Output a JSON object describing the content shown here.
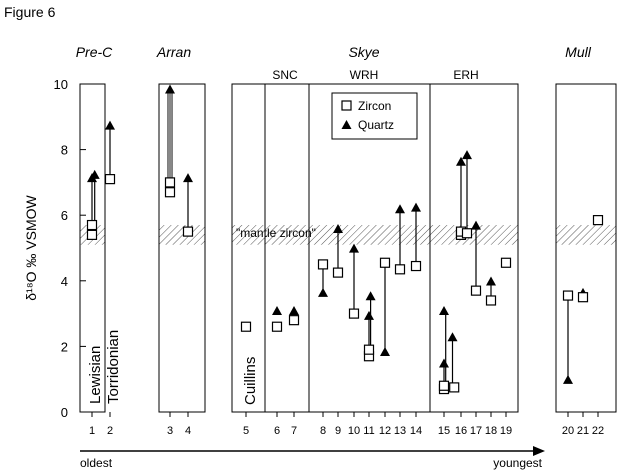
{
  "figure_label": "Figure 6",
  "chart_data": {
    "type": "scatter",
    "ylabel": "δ¹⁸O ‰ VSMOW",
    "ylim": [
      0,
      10
    ],
    "yticks": [
      0,
      2,
      4,
      6,
      8,
      10
    ],
    "arrow_left_label": "oldest",
    "arrow_right_label": "youngest",
    "mantle_zircon_band": [
      5.1,
      5.7
    ],
    "mantle_label": "\"mantle zircon\"",
    "legend": {
      "zircon": "Zircon",
      "quartz": "Quartz",
      "placement": "top-center of Skye panel"
    },
    "panels": [
      {
        "id": "prec",
        "title": "Pre-C",
        "x_samples": [
          1,
          2
        ],
        "labels": [
          "Lewisian",
          "Torridonian"
        ]
      },
      {
        "id": "arran",
        "title": "Arran",
        "x_samples": [
          3,
          4
        ]
      },
      {
        "id": "skye",
        "title": "Skye",
        "subgroups": [
          "SNC",
          "WRH",
          "ERH"
        ],
        "x_samples": [
          5,
          6,
          7,
          8,
          9,
          10,
          11,
          12,
          13,
          14,
          15,
          16,
          17,
          18,
          19
        ],
        "labels": [
          "Cuillins"
        ]
      },
      {
        "id": "mull",
        "title": "Mull",
        "x_samples": [
          20,
          21,
          22
        ]
      }
    ],
    "zircon": [
      {
        "sample": 1,
        "y": 5.4
      },
      {
        "sample": 1,
        "y": 5.7
      },
      {
        "sample": 2,
        "y": 7.1
      },
      {
        "sample": 3,
        "y": 7.0
      },
      {
        "sample": 3,
        "y": 6.7
      },
      {
        "sample": 4,
        "y": 5.5
      },
      {
        "sample": 5,
        "y": 2.6
      },
      {
        "sample": 6,
        "y": 2.6
      },
      {
        "sample": 7,
        "y": 2.8
      },
      {
        "sample": 8,
        "y": 4.5
      },
      {
        "sample": 9,
        "y": 4.25
      },
      {
        "sample": 10,
        "y": 3.0
      },
      {
        "sample": 11,
        "y": 1.7
      },
      {
        "sample": 11,
        "y": 1.9
      },
      {
        "sample": 12,
        "y": 4.55
      },
      {
        "sample": 13,
        "y": 4.35
      },
      {
        "sample": 14,
        "y": 4.45
      },
      {
        "sample": 15,
        "y": 0.7
      },
      {
        "sample": 15,
        "y": 0.8
      },
      {
        "sample": 15.6,
        "y": 0.75
      },
      {
        "sample": 16,
        "y": 5.4
      },
      {
        "sample": 16,
        "y": 5.5
      },
      {
        "sample": 16.4,
        "y": 5.45
      },
      {
        "sample": 17,
        "y": 3.7
      },
      {
        "sample": 18,
        "y": 3.4
      },
      {
        "sample": 19,
        "y": 4.55
      },
      {
        "sample": 20,
        "y": 3.55
      },
      {
        "sample": 21,
        "y": 3.5
      },
      {
        "sample": 22,
        "y": 5.85
      }
    ],
    "quartz": [
      {
        "sample": 1,
        "y": 7.1
      },
      {
        "sample": 1.15,
        "y": 7.2
      },
      {
        "sample": 2,
        "y": 8.7
      },
      {
        "sample": 3,
        "y": 9.8
      },
      {
        "sample": 4,
        "y": 7.1
      },
      {
        "sample": 6,
        "y": 3.05
      },
      {
        "sample": 7,
        "y": 3.05
      },
      {
        "sample": 8,
        "y": 3.6
      },
      {
        "sample": 9,
        "y": 5.55
      },
      {
        "sample": 10,
        "y": 4.95
      },
      {
        "sample": 11,
        "y": 2.9
      },
      {
        "sample": 11.1,
        "y": 3.5
      },
      {
        "sample": 12,
        "y": 1.8
      },
      {
        "sample": 13,
        "y": 6.15
      },
      {
        "sample": 14,
        "y": 6.2
      },
      {
        "sample": 15,
        "y": 1.45
      },
      {
        "sample": 15,
        "y": 3.05
      },
      {
        "sample": 15.5,
        "y": 2.25
      },
      {
        "sample": 16,
        "y": 7.6
      },
      {
        "sample": 16.4,
        "y": 7.8
      },
      {
        "sample": 17,
        "y": 5.65
      },
      {
        "sample": 18,
        "y": 3.95
      },
      {
        "sample": 20,
        "y": 0.95
      },
      {
        "sample": 21,
        "y": 3.6
      }
    ],
    "tie_lines": [
      {
        "sample": 1,
        "from": 5.4,
        "to": 7.1
      },
      {
        "sample": 1.15,
        "from": 5.7,
        "to": 7.2
      },
      {
        "sample": 2,
        "from": 7.1,
        "to": 8.7
      },
      {
        "sample": 3,
        "from": 7.0,
        "to": 9.8,
        "style": "double"
      },
      {
        "sample": 4,
        "from": 5.5,
        "to": 7.1
      },
      {
        "sample": 8,
        "from": 4.5,
        "to": 3.6
      },
      {
        "sample": 9,
        "from": 4.25,
        "to": 5.55
      },
      {
        "sample": 10,
        "from": 3.0,
        "to": 4.95
      },
      {
        "sample": 11,
        "from": 1.7,
        "to": 2.9
      },
      {
        "sample": 11.1,
        "from": 1.9,
        "to": 3.5
      },
      {
        "sample": 12,
        "from": 4.55,
        "to": 1.8
      },
      {
        "sample": 13,
        "from": 4.35,
        "to": 6.15
      },
      {
        "sample": 14,
        "from": 4.45,
        "to": 6.2
      },
      {
        "sample": 15,
        "from": 0.7,
        "to": 1.45
      },
      {
        "sample": 15.1,
        "from": 0.8,
        "to": 3.05
      },
      {
        "sample": 15.5,
        "from": 0.75,
        "to": 2.25
      },
      {
        "sample": 16,
        "from": 5.4,
        "to": 7.6
      },
      {
        "sample": 16.4,
        "from": 5.5,
        "to": 7.8
      },
      {
        "sample": 17,
        "from": 3.7,
        "to": 5.65
      },
      {
        "sample": 18,
        "from": 3.4,
        "to": 3.95
      },
      {
        "sample": 20,
        "from": 3.55,
        "to": 0.95
      }
    ]
  }
}
